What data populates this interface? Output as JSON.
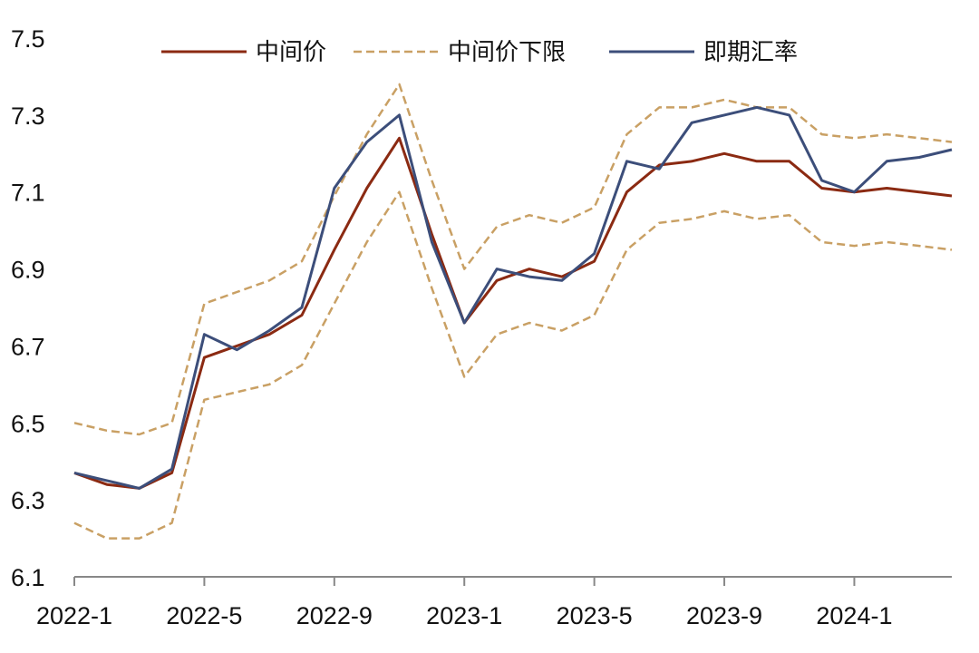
{
  "chart_data": {
    "type": "line",
    "title": "",
    "xlabel": "",
    "ylabel": "",
    "ylim": [
      6.1,
      7.5
    ],
    "y_ticks": [
      "7.5",
      "7.3",
      "7.1",
      "6.9",
      "6.7",
      "6.5",
      "6.3",
      "6.1"
    ],
    "x_tick_labels": [
      "2022-1",
      "2022-5",
      "2022-9",
      "2023-1",
      "2023-5",
      "2023-9",
      "2024-1"
    ],
    "x_ticks": [
      "2022-01",
      "2022-05",
      "2022-09",
      "2023-01",
      "2023-05",
      "2023-09",
      "2024-01"
    ],
    "x_end": "2024-04",
    "legend_position": "top",
    "grid": false,
    "x": [
      "2022-01",
      "2022-02",
      "2022-03",
      "2022-04",
      "2022-05",
      "2022-06",
      "2022-07",
      "2022-08",
      "2022-09",
      "2022-10",
      "2022-11",
      "2022-12",
      "2023-01",
      "2023-02",
      "2023-03",
      "2023-04",
      "2023-05",
      "2023-06",
      "2023-07",
      "2023-08",
      "2023-09",
      "2023-10",
      "2023-11",
      "2023-12",
      "2024-01",
      "2024-02",
      "2024-03",
      "2024-04"
    ],
    "series": [
      {
        "name": "中间价",
        "color": "#8B2A12",
        "style": "solid",
        "values": [
          6.37,
          6.34,
          6.33,
          6.37,
          6.67,
          6.7,
          6.73,
          6.78,
          6.95,
          7.11,
          7.24,
          6.99,
          6.76,
          6.87,
          6.9,
          6.88,
          6.92,
          7.1,
          7.17,
          7.18,
          7.2,
          7.18,
          7.18,
          7.11,
          7.1,
          7.11,
          7.1,
          7.09
        ]
      },
      {
        "name": "中间价下限",
        "color": "#C9A064",
        "style": "dashed",
        "values": [
          6.24,
          6.2,
          6.2,
          6.24,
          6.56,
          6.58,
          6.6,
          6.65,
          6.81,
          6.97,
          7.1,
          6.85,
          6.62,
          6.73,
          6.76,
          6.74,
          6.78,
          6.95,
          7.02,
          7.03,
          7.05,
          7.03,
          7.04,
          6.97,
          6.96,
          6.97,
          6.96,
          6.95
        ]
      },
      {
        "name": "中间价下限",
        "color": "#C9A064",
        "style": "dashed",
        "values": [
          6.5,
          6.48,
          6.47,
          6.5,
          6.81,
          6.84,
          6.87,
          6.92,
          7.09,
          7.25,
          7.38,
          7.13,
          6.9,
          7.01,
          7.04,
          7.02,
          7.06,
          7.25,
          7.32,
          7.32,
          7.34,
          7.32,
          7.32,
          7.25,
          7.24,
          7.25,
          7.24,
          7.23
        ]
      },
      {
        "name": "即期汇率",
        "color": "#3C4E7A",
        "style": "solid",
        "values": [
          6.37,
          6.35,
          6.33,
          6.38,
          6.73,
          6.69,
          6.74,
          6.8,
          7.11,
          7.23,
          7.3,
          6.97,
          6.76,
          6.9,
          6.88,
          6.87,
          6.94,
          7.18,
          7.16,
          7.28,
          7.3,
          7.32,
          7.3,
          7.13,
          7.1,
          7.18,
          7.19,
          7.21
        ]
      }
    ]
  }
}
